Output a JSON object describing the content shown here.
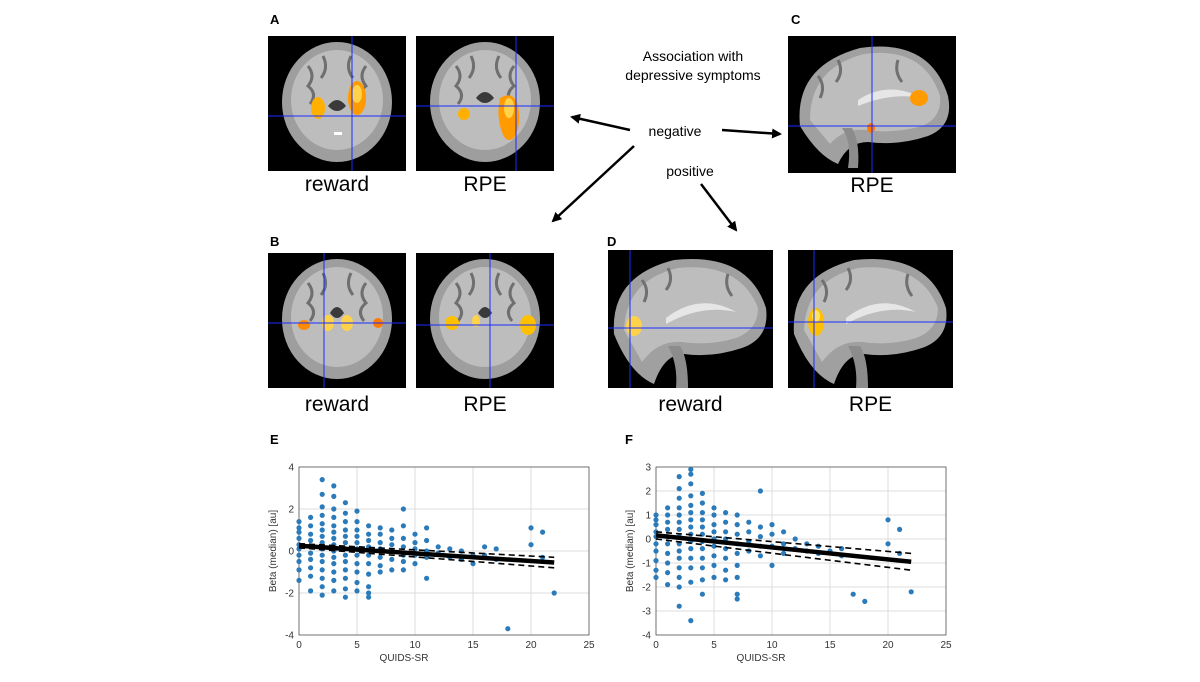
{
  "panels": {
    "A": {
      "letter": "A",
      "labels": [
        "reward",
        "RPE"
      ]
    },
    "B": {
      "letter": "B",
      "labels": [
        "reward",
        "RPE"
      ]
    },
    "C": {
      "letter": "C",
      "labels": [
        "RPE"
      ]
    },
    "D": {
      "letter": "D",
      "labels": [
        "reward",
        "RPE"
      ]
    },
    "E": {
      "letter": "E"
    },
    "F": {
      "letter": "F"
    }
  },
  "annotation": {
    "title_line1": "Association with",
    "title_line2": "depressive symptoms",
    "negative": "negative",
    "positive": "positive"
  },
  "colors": {
    "scatter": "#2b7bba",
    "fit": "#000000",
    "activation": "#ffb000",
    "crosshair": "#1a2cff"
  },
  "chart_data": [
    {
      "type": "scatter",
      "panel": "E",
      "xlabel": "QUIDS-SR",
      "ylabel": "Beta (median) [au]",
      "xlim": [
        0,
        25
      ],
      "ylim": [
        -4,
        4
      ],
      "xticks": [
        0,
        5,
        10,
        15,
        20,
        25
      ],
      "yticks": [
        -4,
        -2,
        0,
        2,
        4
      ],
      "grid": true,
      "fit_line": {
        "x": [
          0,
          22
        ],
        "y": [
          0.25,
          -0.55
        ]
      },
      "ci_upper": {
        "x": [
          0,
          22
        ],
        "y": [
          0.35,
          -0.3
        ]
      },
      "ci_lower": {
        "x": [
          0,
          22
        ],
        "y": [
          0.15,
          -0.8
        ]
      },
      "points": [
        [
          0,
          1.4
        ],
        [
          0,
          1.1
        ],
        [
          0,
          0.9
        ],
        [
          0,
          0.6
        ],
        [
          0,
          0.3
        ],
        [
          0,
          0.1
        ],
        [
          0,
          -0.2
        ],
        [
          0,
          -0.5
        ],
        [
          0,
          -0.9
        ],
        [
          0,
          -1.4
        ],
        [
          1,
          1.6
        ],
        [
          1,
          1.2
        ],
        [
          1,
          0.8
        ],
        [
          1,
          0.5
        ],
        [
          1,
          0.2
        ],
        [
          1,
          -0.1
        ],
        [
          1,
          -0.4
        ],
        [
          1,
          -0.8
        ],
        [
          1,
          -1.2
        ],
        [
          1,
          -1.9
        ],
        [
          2,
          3.4
        ],
        [
          2,
          2.7
        ],
        [
          2,
          2.1
        ],
        [
          2,
          1.7
        ],
        [
          2,
          1.3
        ],
        [
          2,
          1.0
        ],
        [
          2,
          0.7
        ],
        [
          2,
          0.4
        ],
        [
          2,
          0.1
        ],
        [
          2,
          -0.2
        ],
        [
          2,
          -0.5
        ],
        [
          2,
          -0.9
        ],
        [
          2,
          -1.3
        ],
        [
          2,
          -1.7
        ],
        [
          2,
          -2.1
        ],
        [
          3,
          3.1
        ],
        [
          3,
          2.6
        ],
        [
          3,
          2.0
        ],
        [
          3,
          1.6
        ],
        [
          3,
          1.2
        ],
        [
          3,
          0.9
        ],
        [
          3,
          0.6
        ],
        [
          3,
          0.3
        ],
        [
          3,
          0.0
        ],
        [
          3,
          -0.3
        ],
        [
          3,
          -0.6
        ],
        [
          3,
          -1.0
        ],
        [
          3,
          -1.4
        ],
        [
          3,
          -1.9
        ],
        [
          4,
          2.3
        ],
        [
          4,
          1.8
        ],
        [
          4,
          1.4
        ],
        [
          4,
          1.0
        ],
        [
          4,
          0.7
        ],
        [
          4,
          0.4
        ],
        [
          4,
          0.1
        ],
        [
          4,
          -0.2
        ],
        [
          4,
          -0.5
        ],
        [
          4,
          -0.9
        ],
        [
          4,
          -1.3
        ],
        [
          4,
          -1.8
        ],
        [
          4,
          -2.2
        ],
        [
          5,
          1.9
        ],
        [
          5,
          1.4
        ],
        [
          5,
          1.0
        ],
        [
          5,
          0.7
        ],
        [
          5,
          0.4
        ],
        [
          5,
          0.1
        ],
        [
          5,
          -0.2
        ],
        [
          5,
          -0.6
        ],
        [
          5,
          -1.0
        ],
        [
          5,
          -1.5
        ],
        [
          5,
          -1.9
        ],
        [
          6,
          1.2
        ],
        [
          6,
          0.8
        ],
        [
          6,
          0.5
        ],
        [
          6,
          0.2
        ],
        [
          6,
          -0.2
        ],
        [
          6,
          -0.6
        ],
        [
          6,
          -1.1
        ],
        [
          6,
          -1.7
        ],
        [
          6,
          -2.0
        ],
        [
          6,
          -2.2
        ],
        [
          7,
          1.1
        ],
        [
          7,
          0.8
        ],
        [
          7,
          0.4
        ],
        [
          7,
          0.1
        ],
        [
          7,
          -0.3
        ],
        [
          7,
          -0.7
        ],
        [
          7,
          -1.0
        ],
        [
          8,
          1.0
        ],
        [
          8,
          0.6
        ],
        [
          8,
          0.3
        ],
        [
          8,
          0.0
        ],
        [
          8,
          -0.4
        ],
        [
          8,
          -0.9
        ],
        [
          9,
          2.0
        ],
        [
          9,
          1.2
        ],
        [
          9,
          0.6
        ],
        [
          9,
          0.2
        ],
        [
          9,
          -0.2
        ],
        [
          9,
          -0.5
        ],
        [
          9,
          -0.9
        ],
        [
          10,
          0.8
        ],
        [
          10,
          0.4
        ],
        [
          10,
          0.1
        ],
        [
          10,
          -0.2
        ],
        [
          10,
          -0.6
        ],
        [
          11,
          1.1
        ],
        [
          11,
          0.5
        ],
        [
          11,
          0.0
        ],
        [
          11,
          -0.3
        ],
        [
          11,
          -1.3
        ],
        [
          12,
          0.2
        ],
        [
          12,
          -0.1
        ],
        [
          13,
          0.1
        ],
        [
          13,
          -0.3
        ],
        [
          14,
          0.0
        ],
        [
          14,
          -0.4
        ],
        [
          15,
          -0.2
        ],
        [
          15,
          -0.6
        ],
        [
          16,
          0.2
        ],
        [
          16,
          -0.2
        ],
        [
          17,
          0.1
        ],
        [
          17,
          -0.4
        ],
        [
          18,
          -3.7
        ],
        [
          20,
          1.1
        ],
        [
          20,
          0.3
        ],
        [
          21,
          0.9
        ],
        [
          21,
          -0.3
        ],
        [
          22,
          -2.0
        ]
      ]
    },
    {
      "type": "scatter",
      "panel": "F",
      "xlabel": "QUIDS-SR",
      "ylabel": "Beta (median) [au]",
      "xlim": [
        0,
        25
      ],
      "ylim": [
        -4,
        3
      ],
      "xticks": [
        0,
        5,
        10,
        15,
        20,
        25
      ],
      "yticks": [
        -4,
        -3,
        -2,
        -1,
        0,
        1,
        2,
        3
      ],
      "grid": true,
      "fit_line": {
        "x": [
          0,
          22
        ],
        "y": [
          0.15,
          -0.95
        ]
      },
      "ci_upper": {
        "x": [
          0,
          22
        ],
        "y": [
          0.3,
          -0.6
        ]
      },
      "ci_lower": {
        "x": [
          0,
          22
        ],
        "y": [
          0.0,
          -1.3
        ]
      },
      "points": [
        [
          0,
          1.0
        ],
        [
          0,
          0.8
        ],
        [
          0,
          0.6
        ],
        [
          0,
          0.3
        ],
        [
          0,
          0.1
        ],
        [
          0,
          -0.2
        ],
        [
          0,
          -0.5
        ],
        [
          0,
          -0.9
        ],
        [
          0,
          -1.3
        ],
        [
          0,
          -1.6
        ],
        [
          1,
          1.3
        ],
        [
          1,
          1.0
        ],
        [
          1,
          0.7
        ],
        [
          1,
          0.4
        ],
        [
          1,
          0.1
        ],
        [
          1,
          -0.2
        ],
        [
          1,
          -0.6
        ],
        [
          1,
          -1.0
        ],
        [
          1,
          -1.4
        ],
        [
          1,
          -1.9
        ],
        [
          2,
          2.6
        ],
        [
          2,
          2.1
        ],
        [
          2,
          1.7
        ],
        [
          2,
          1.3
        ],
        [
          2,
          1.0
        ],
        [
          2,
          0.7
        ],
        [
          2,
          0.4
        ],
        [
          2,
          0.1
        ],
        [
          2,
          -0.2
        ],
        [
          2,
          -0.5
        ],
        [
          2,
          -0.8
        ],
        [
          2,
          -1.2
        ],
        [
          2,
          -1.6
        ],
        [
          2,
          -2.0
        ],
        [
          2,
          -2.8
        ],
        [
          3,
          2.9
        ],
        [
          3,
          2.7
        ],
        [
          3,
          2.3
        ],
        [
          3,
          1.8
        ],
        [
          3,
          1.4
        ],
        [
          3,
          1.1
        ],
        [
          3,
          0.8
        ],
        [
          3,
          0.5
        ],
        [
          3,
          0.2
        ],
        [
          3,
          -0.1
        ],
        [
          3,
          -0.4
        ],
        [
          3,
          -0.8
        ],
        [
          3,
          -1.2
        ],
        [
          3,
          -1.8
        ],
        [
          3,
          -3.4
        ],
        [
          4,
          1.9
        ],
        [
          4,
          1.5
        ],
        [
          4,
          1.1
        ],
        [
          4,
          0.8
        ],
        [
          4,
          0.5
        ],
        [
          4,
          0.2
        ],
        [
          4,
          -0.1
        ],
        [
          4,
          -0.4
        ],
        [
          4,
          -0.8
        ],
        [
          4,
          -1.2
        ],
        [
          4,
          -1.7
        ],
        [
          4,
          -2.3
        ],
        [
          5,
          1.3
        ],
        [
          5,
          1.0
        ],
        [
          5,
          0.6
        ],
        [
          5,
          0.3
        ],
        [
          5,
          0.0
        ],
        [
          5,
          -0.3
        ],
        [
          5,
          -0.7
        ],
        [
          5,
          -1.1
        ],
        [
          5,
          -1.6
        ],
        [
          6,
          1.1
        ],
        [
          6,
          0.7
        ],
        [
          6,
          0.3
        ],
        [
          6,
          0.0
        ],
        [
          6,
          -0.4
        ],
        [
          6,
          -0.8
        ],
        [
          6,
          -1.3
        ],
        [
          6,
          -1.7
        ],
        [
          7,
          1.0
        ],
        [
          7,
          0.6
        ],
        [
          7,
          0.2
        ],
        [
          7,
          -0.2
        ],
        [
          7,
          -0.6
        ],
        [
          7,
          -1.1
        ],
        [
          7,
          -1.6
        ],
        [
          7,
          -2.3
        ],
        [
          7,
          -2.5
        ],
        [
          8,
          0.7
        ],
        [
          8,
          0.3
        ],
        [
          8,
          -0.1
        ],
        [
          8,
          -0.5
        ],
        [
          9,
          2.0
        ],
        [
          9,
          0.5
        ],
        [
          9,
          0.1
        ],
        [
          9,
          -0.3
        ],
        [
          9,
          -0.7
        ],
        [
          10,
          0.6
        ],
        [
          10,
          0.2
        ],
        [
          10,
          -0.3
        ],
        [
          10,
          -1.1
        ],
        [
          11,
          0.3
        ],
        [
          11,
          -0.2
        ],
        [
          11,
          -0.6
        ],
        [
          12,
          0.0
        ],
        [
          12,
          -0.4
        ],
        [
          13,
          -0.2
        ],
        [
          13,
          -0.5
        ],
        [
          14,
          -0.3
        ],
        [
          14,
          -0.6
        ],
        [
          15,
          -0.5
        ],
        [
          16,
          -0.4
        ],
        [
          16,
          -0.7
        ],
        [
          17,
          -2.3
        ],
        [
          18,
          -2.6
        ],
        [
          20,
          0.8
        ],
        [
          20,
          -0.2
        ],
        [
          21,
          0.4
        ],
        [
          21,
          -0.6
        ],
        [
          22,
          -2.2
        ]
      ]
    }
  ]
}
